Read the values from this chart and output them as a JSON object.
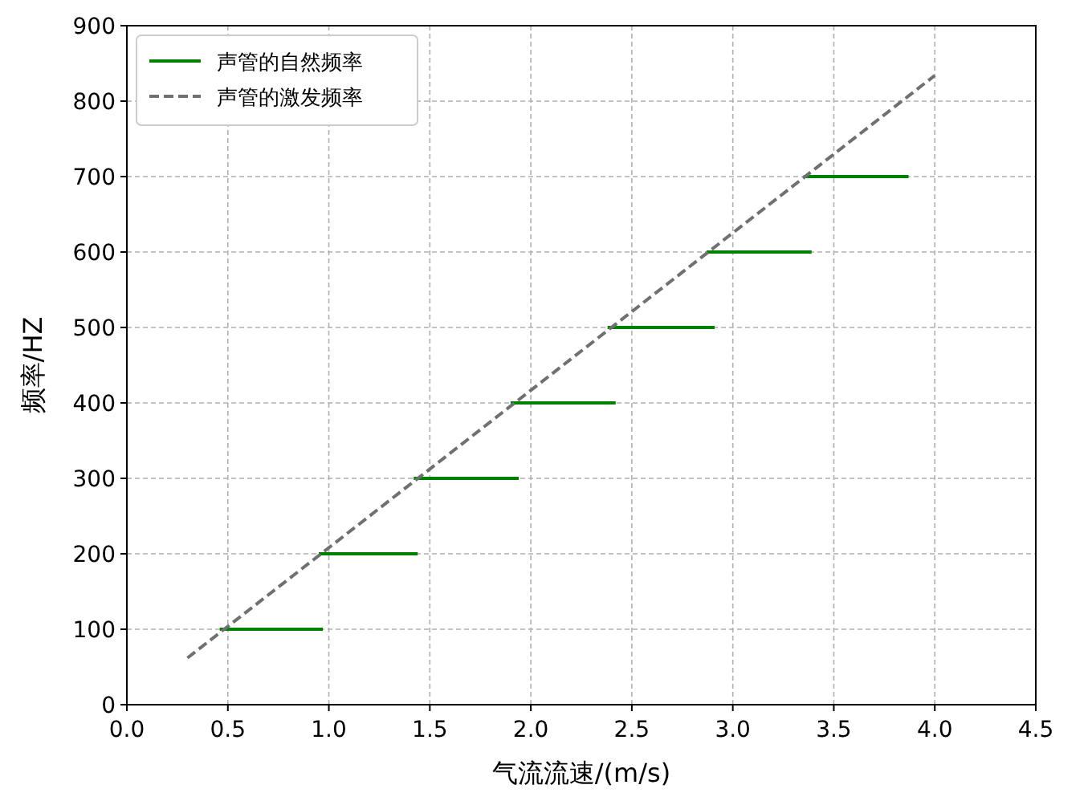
{
  "chart_data": {
    "type": "line",
    "xlabel": "气流流速/(m/s)",
    "ylabel": "频率/HZ",
    "xlim": [
      0,
      4.5
    ],
    "xticks": [
      {
        "value": 0,
        "label": "0.0"
      },
      0.5,
      {
        "value": 1,
        "label": "1.0"
      },
      1.5,
      {
        "value": 2,
        "label": "2.0"
      },
      2.5,
      {
        "value": 3,
        "label": "3.0"
      },
      3.5,
      {
        "value": 4,
        "label": "4.0"
      },
      4.5
    ],
    "ylim": [
      0,
      900
    ],
    "yticks": [
      0,
      100,
      200,
      300,
      400,
      500,
      600,
      700,
      800,
      900
    ],
    "grid": true,
    "legend": "top left",
    "series": [
      {
        "name": "声管的自然频率",
        "color": "#008000",
        "line_style": "solid",
        "x": [
          0.46,
          0.97,
          null,
          0.95,
          1.44,
          null,
          1.42,
          1.94,
          null,
          1.9,
          2.42,
          null,
          2.38,
          2.91,
          null,
          2.87,
          3.39,
          null,
          3.35,
          3.87
        ],
        "values": [
          100,
          100,
          null,
          200,
          200,
          null,
          300,
          300,
          null,
          400,
          400,
          null,
          500,
          500,
          null,
          600,
          600,
          null,
          700,
          700
        ]
      },
      {
        "name": "声管的激发频率",
        "color": "#707070",
        "line_style": "dashed",
        "x": [
          0.3,
          4.0
        ],
        "values": [
          62,
          834
        ]
      }
    ]
  }
}
